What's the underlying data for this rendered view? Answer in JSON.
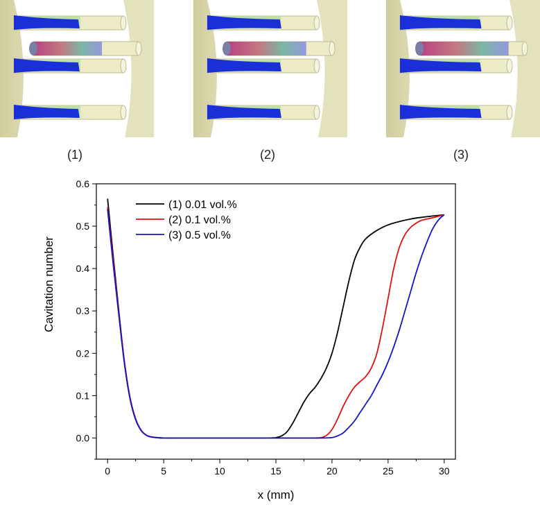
{
  "panels": [
    {
      "label": "(1)",
      "cavity_extent": 0.35
    },
    {
      "label": "(2)",
      "cavity_extent": 0.6
    },
    {
      "label": "(3)",
      "cavity_extent": 0.82
    }
  ],
  "colors": {
    "plate": "#cfcc9c",
    "plate_shadow": "#bdb98a",
    "rod": "#ecebc6",
    "rod_edge": "#bdbb95",
    "vapor": "#1a2fd8",
    "series_1": "#000000",
    "series_2": "#e01010",
    "series_3": "#1414c8"
  },
  "chart_data": {
    "type": "line",
    "xlabel": "x (mm)",
    "ylabel": "Cavitation number",
    "xlim": [
      -1,
      31
    ],
    "ylim": [
      -0.05,
      0.6
    ],
    "x_ticks": [
      "0",
      "5",
      "10",
      "15",
      "20",
      "25",
      "30"
    ],
    "y_ticks": [
      "0.0",
      "0.1",
      "0.2",
      "0.3",
      "0.4",
      "0.5",
      "0.6"
    ],
    "legend_position": "top-left",
    "grid": false,
    "series": [
      {
        "name": "(1) 0.01 vol.%",
        "x": [
          0,
          0.5,
          1,
          1.5,
          2,
          2.5,
          3,
          3.5,
          4,
          5,
          6,
          8,
          10,
          12,
          14,
          15,
          15.5,
          16,
          16.5,
          17,
          17.5,
          18,
          18.5,
          19,
          19.5,
          20,
          20.5,
          21,
          21.5,
          22,
          22.5,
          23,
          24,
          25,
          26,
          27,
          28,
          29,
          30
        ],
        "y": [
          0.565,
          0.43,
          0.3,
          0.18,
          0.095,
          0.045,
          0.018,
          0.006,
          0.002,
          0.0,
          0.0,
          0.0,
          0.0,
          0.0,
          0.0,
          0.001,
          0.005,
          0.015,
          0.035,
          0.06,
          0.085,
          0.105,
          0.12,
          0.14,
          0.165,
          0.2,
          0.25,
          0.31,
          0.37,
          0.42,
          0.45,
          0.47,
          0.49,
          0.503,
          0.511,
          0.517,
          0.521,
          0.524,
          0.527
        ]
      },
      {
        "name": "(2) 0.1 vol.%",
        "x": [
          0,
          0.5,
          1,
          1.5,
          2,
          2.5,
          3,
          3.5,
          4,
          5,
          6,
          8,
          10,
          12,
          14,
          16,
          18,
          19,
          19.5,
          20,
          20.5,
          21,
          21.5,
          22,
          22.5,
          23,
          23.5,
          24,
          24.5,
          25,
          25.5,
          26,
          26.5,
          27,
          27.5,
          28,
          29,
          30
        ],
        "y": [
          0.545,
          0.42,
          0.295,
          0.18,
          0.095,
          0.045,
          0.018,
          0.006,
          0.002,
          0.0,
          0.0,
          0.0,
          0.0,
          0.0,
          0.0,
          0.0,
          0.0,
          0.001,
          0.006,
          0.02,
          0.045,
          0.075,
          0.1,
          0.12,
          0.133,
          0.145,
          0.165,
          0.2,
          0.26,
          0.33,
          0.4,
          0.45,
          0.48,
          0.497,
          0.507,
          0.514,
          0.52,
          0.527
        ]
      },
      {
        "name": "(3) 0.5 vol.%",
        "x": [
          0,
          0.5,
          1,
          1.5,
          2,
          2.5,
          3,
          3.5,
          4,
          5,
          6,
          8,
          10,
          12,
          14,
          16,
          18,
          19,
          20,
          20.5,
          21,
          21.5,
          22,
          22.5,
          23,
          23.5,
          24,
          24.5,
          25,
          25.5,
          26,
          26.5,
          27,
          27.5,
          28,
          28.5,
          29,
          29.5,
          30
        ],
        "y": [
          0.54,
          0.41,
          0.29,
          0.175,
          0.092,
          0.043,
          0.017,
          0.006,
          0.002,
          0.0,
          0.0,
          0.0,
          0.0,
          0.0,
          0.0,
          0.0,
          0.0,
          0.0,
          0.001,
          0.005,
          0.012,
          0.025,
          0.04,
          0.06,
          0.08,
          0.1,
          0.125,
          0.15,
          0.18,
          0.215,
          0.255,
          0.3,
          0.345,
          0.39,
          0.43,
          0.465,
          0.495,
          0.515,
          0.527
        ]
      }
    ]
  }
}
